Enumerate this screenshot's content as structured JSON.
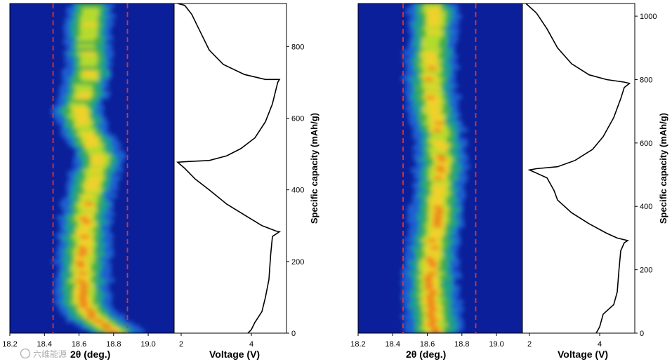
{
  "chart_data": [
    {
      "type": "heatmap",
      "name": "left",
      "xlabel": "2θ (deg.)",
      "xlim": [
        18.2,
        19.15
      ],
      "x_ticks": [
        18.2,
        18.4,
        18.6,
        18.8,
        19.0
      ],
      "x_tick_labels": [
        "18.2",
        "18.4",
        "18.6",
        "18.8",
        "19.0"
      ],
      "ylim": [
        0,
        920
      ],
      "reference_lines_2theta": [
        18.45,
        18.88
      ],
      "peak_center_path": [
        [
          0,
          18.82
        ],
        [
          25,
          18.74
        ],
        [
          50,
          18.67
        ],
        [
          90,
          18.62
        ],
        [
          150,
          18.62
        ],
        [
          200,
          18.62
        ],
        [
          260,
          18.63
        ],
        [
          320,
          18.64
        ],
        [
          380,
          18.66
        ],
        [
          440,
          18.68
        ],
        [
          490,
          18.72
        ],
        [
          530,
          18.68
        ],
        [
          580,
          18.62
        ],
        [
          620,
          18.6
        ],
        [
          680,
          18.63
        ],
        [
          720,
          18.66
        ],
        [
          780,
          18.65
        ],
        [
          840,
          18.65
        ],
        [
          900,
          18.67
        ]
      ],
      "voltage_profile": {
        "xlabel": "Voltage (V)",
        "xlim": [
          1.8,
          5.0
        ],
        "x_ticks": [
          2,
          4
        ],
        "x_tick_labels": [
          "2",
          "4"
        ],
        "points": [
          [
            3.9,
            0
          ],
          [
            4.0,
            10
          ],
          [
            4.1,
            30
          ],
          [
            4.3,
            60
          ],
          [
            4.4,
            100
          ],
          [
            4.5,
            150
          ],
          [
            4.55,
            220
          ],
          [
            4.6,
            270
          ],
          [
            4.8,
            283
          ],
          [
            4.7,
            285
          ],
          [
            4.3,
            300
          ],
          [
            3.8,
            330
          ],
          [
            3.3,
            360
          ],
          [
            2.8,
            400
          ],
          [
            2.4,
            430
          ],
          [
            2.1,
            460
          ],
          [
            1.9,
            477
          ],
          [
            2.2,
            479
          ],
          [
            2.8,
            482
          ],
          [
            3.3,
            495
          ],
          [
            3.7,
            515
          ],
          [
            4.1,
            545
          ],
          [
            4.4,
            590
          ],
          [
            4.6,
            640
          ],
          [
            4.75,
            700
          ],
          [
            4.8,
            708
          ],
          [
            4.4,
            708
          ],
          [
            3.8,
            722
          ],
          [
            3.2,
            750
          ],
          [
            2.8,
            790
          ],
          [
            2.5,
            850
          ],
          [
            2.3,
            890
          ],
          [
            2.1,
            915
          ],
          [
            1.9,
            920
          ]
        ]
      },
      "ylabel": "Specific capacity (mAh/g)",
      "y_ticks": [
        0,
        200,
        400,
        600,
        800
      ],
      "y_tick_labels": [
        "0",
        "200",
        "400",
        "600",
        "800"
      ]
    },
    {
      "type": "heatmap",
      "name": "right",
      "xlabel": "2θ (deg.)",
      "xlim": [
        18.2,
        19.15
      ],
      "x_ticks": [
        18.2,
        18.4,
        18.6,
        18.8,
        19.0
      ],
      "x_tick_labels": [
        "18.2",
        "18.4",
        "18.6",
        "18.8",
        "19.0"
      ],
      "ylim": [
        0,
        1040
      ],
      "reference_lines_2theta": [
        18.46,
        18.88
      ],
      "peak_center_path": [
        [
          0,
          18.64
        ],
        [
          60,
          18.63
        ],
        [
          140,
          18.62
        ],
        [
          220,
          18.62
        ],
        [
          300,
          18.64
        ],
        [
          380,
          18.66
        ],
        [
          460,
          18.67
        ],
        [
          540,
          18.68
        ],
        [
          620,
          18.67
        ],
        [
          700,
          18.64
        ],
        [
          780,
          18.62
        ],
        [
          860,
          18.62
        ],
        [
          940,
          18.63
        ],
        [
          1020,
          18.64
        ]
      ],
      "voltage_profile": {
        "xlabel": "Voltage (V)",
        "xlim": [
          1.8,
          5.0
        ],
        "x_ticks": [
          2,
          4
        ],
        "x_tick_labels": [
          "2",
          "4"
        ],
        "points": [
          [
            3.9,
            0
          ],
          [
            4.0,
            20
          ],
          [
            4.1,
            60
          ],
          [
            4.4,
            90
          ],
          [
            4.5,
            130
          ],
          [
            4.55,
            200
          ],
          [
            4.6,
            260
          ],
          [
            4.7,
            285
          ],
          [
            4.8,
            292
          ],
          [
            4.5,
            300
          ],
          [
            4.2,
            315
          ],
          [
            3.7,
            345
          ],
          [
            3.2,
            380
          ],
          [
            2.8,
            420
          ],
          [
            2.7,
            450
          ],
          [
            2.6,
            470
          ],
          [
            2.5,
            490
          ],
          [
            2.2,
            505
          ],
          [
            2.0,
            515
          ],
          [
            2.2,
            519
          ],
          [
            2.8,
            525
          ],
          [
            3.3,
            545
          ],
          [
            3.8,
            580
          ],
          [
            4.1,
            620
          ],
          [
            4.4,
            680
          ],
          [
            4.6,
            740
          ],
          [
            4.7,
            775
          ],
          [
            4.85,
            788
          ],
          [
            4.7,
            792
          ],
          [
            4.2,
            800
          ],
          [
            3.7,
            815
          ],
          [
            3.2,
            850
          ],
          [
            2.8,
            900
          ],
          [
            2.5,
            960
          ],
          [
            2.2,
            1010
          ],
          [
            1.9,
            1040
          ]
        ]
      },
      "ylabel": "Specific capacity (mAh/g)",
      "y_ticks": [
        0,
        200,
        400,
        600,
        800,
        1000
      ],
      "y_tick_labels": [
        "0",
        "200",
        "400",
        "600",
        "800",
        "1000"
      ]
    }
  ],
  "watermark": "六维能源",
  "colors": {
    "background_low": "#0b1f9a",
    "ref_line": "#e0322d",
    "curve": "#000000"
  }
}
